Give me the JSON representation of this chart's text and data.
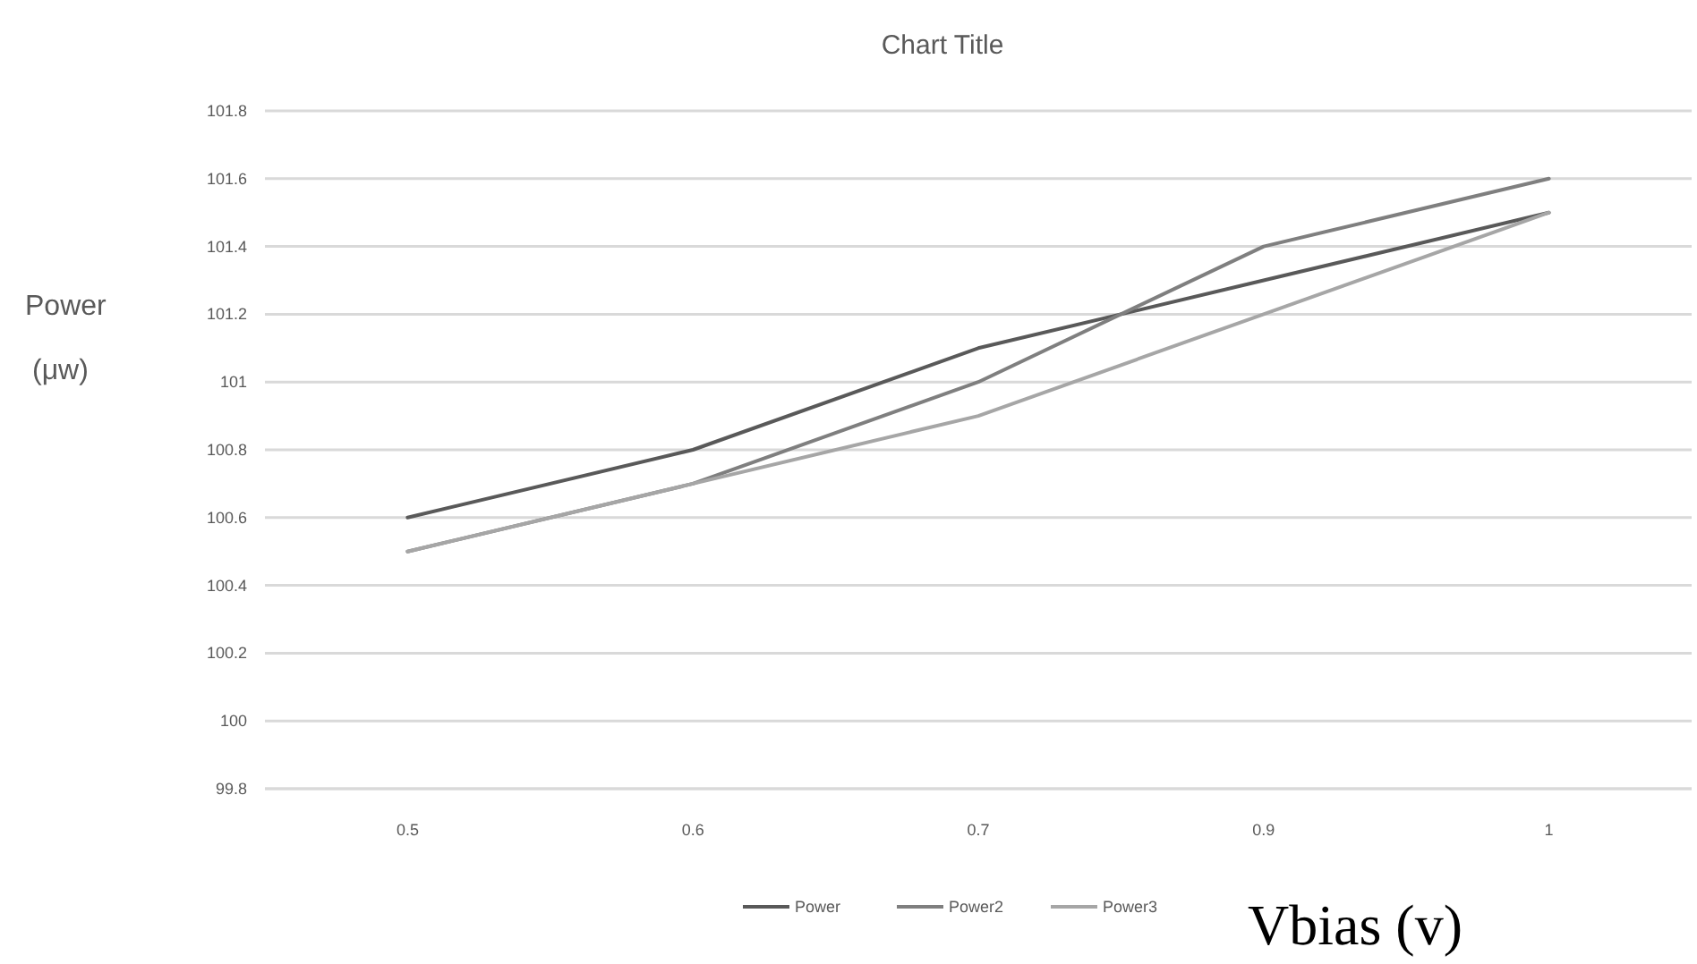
{
  "chart_data": {
    "type": "line",
    "title": "Chart Title",
    "xlabel": "Vbias (v)",
    "ylabel": "Power (μw)",
    "categories": [
      "0.5",
      "0.6",
      "0.7",
      "0.9",
      "1"
    ],
    "series": [
      {
        "name": "Power",
        "color": "#595959",
        "values": [
          100.6,
          100.8,
          101.1,
          101.3,
          101.5
        ]
      },
      {
        "name": "Power2",
        "color": "#7f7f7f",
        "values": [
          100.5,
          100.7,
          101.0,
          101.4,
          101.6
        ]
      },
      {
        "name": "Power3",
        "color": "#a6a6a6",
        "values": [
          100.5,
          100.7,
          100.9,
          101.2,
          101.5
        ]
      }
    ],
    "ylim": [
      99.8,
      101.8
    ],
    "yticks": [
      99.8,
      100,
      100.2,
      100.4,
      100.6,
      100.8,
      101,
      101.2,
      101.4,
      101.6,
      101.8
    ],
    "grid": "y",
    "legend": "bottom",
    "marker": "none",
    "line_style": "solid"
  }
}
